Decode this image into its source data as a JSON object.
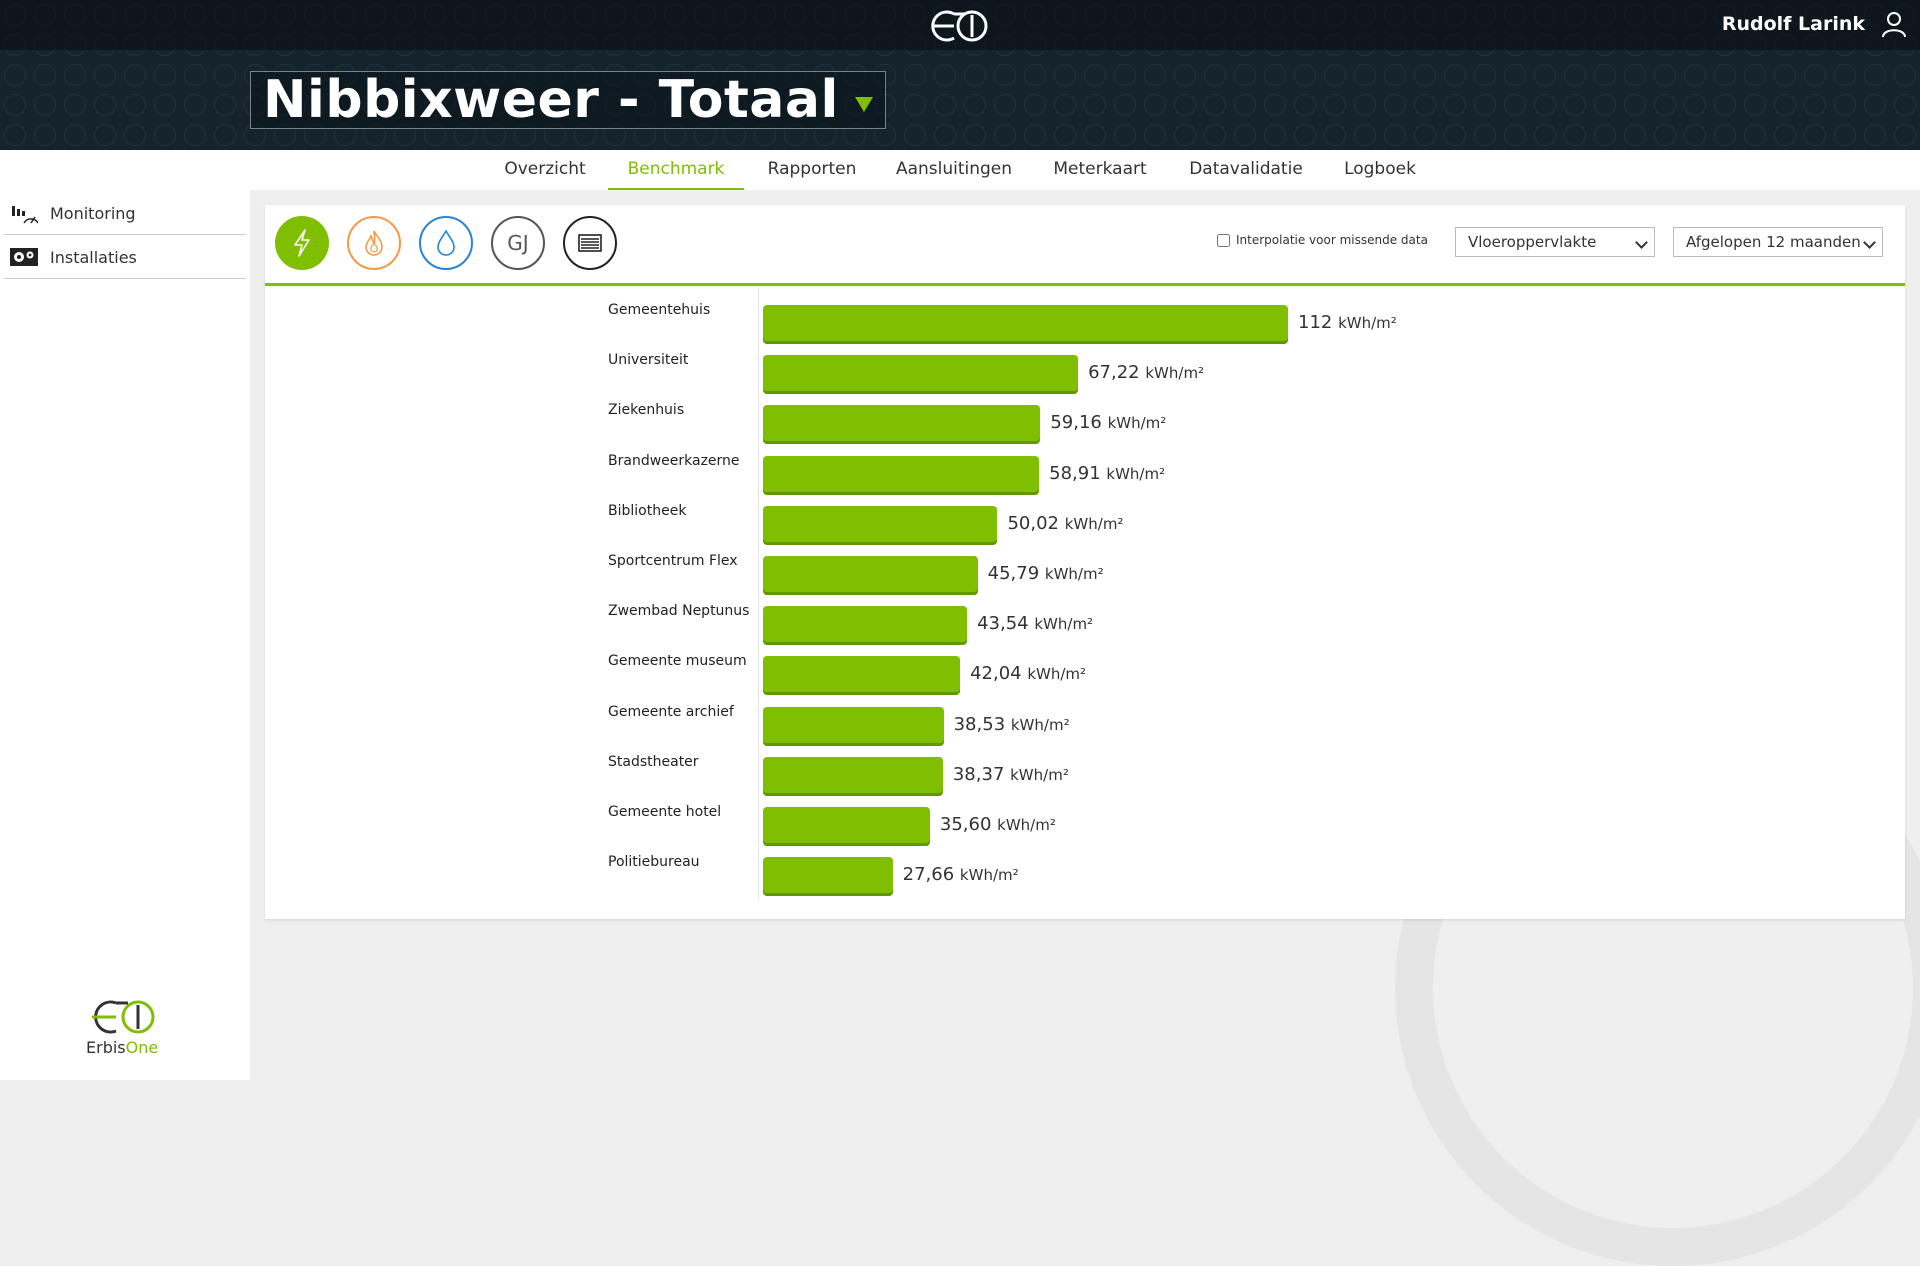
{
  "header": {
    "user_name": "Rudolf Larink",
    "title": "Nibbixweer - Totaal"
  },
  "tabs": [
    {
      "label": "Overzicht",
      "active": false
    },
    {
      "label": "Benchmark",
      "active": true
    },
    {
      "label": "Rapporten",
      "active": false
    },
    {
      "label": "Aansluitingen",
      "active": false
    },
    {
      "label": "Meterkaart",
      "active": false
    },
    {
      "label": "Datavalidatie",
      "active": false
    },
    {
      "label": "Logboek",
      "active": false
    }
  ],
  "sidebar": {
    "items": [
      {
        "label": "Monitoring",
        "icon": "bar-chart-icon"
      },
      {
        "label": "Installaties",
        "icon": "gears-icon"
      }
    ],
    "logo_text_a": "Erbis",
    "logo_text_b": "One"
  },
  "toolbar": {
    "categories": [
      {
        "name": "electricity",
        "icon": "lightning-icon",
        "color": "#7fbe00",
        "selected": true
      },
      {
        "name": "gas",
        "icon": "flame-icon",
        "color": "#f39a4a",
        "selected": false
      },
      {
        "name": "water",
        "icon": "water-drop-icon",
        "color": "#2a84d2",
        "selected": false
      },
      {
        "name": "heat",
        "label": "GJ",
        "color": "#555555",
        "selected": false
      },
      {
        "name": "total",
        "icon": "list-icon",
        "color": "#222222",
        "selected": false
      }
    ],
    "interpolation_label": "Interpolatie voor missende data",
    "interpolation_checked": false,
    "basis_select": "Vloeroppervlakte",
    "period_select": "Afgelopen 12 maanden"
  },
  "colors": {
    "accent": "#7fbe00",
    "header_bg": "#15232c"
  },
  "chart_data": {
    "type": "bar",
    "orientation": "horizontal",
    "unit": "kWh/m²",
    "categories": [
      "Gemeentehuis",
      "Universiteit",
      "Ziekenhuis",
      "Brandweerkazerne",
      "Bibliotheek",
      "Sportcentrum Flex",
      "Zwembad Neptunus",
      "Gemeente museum",
      "Gemeente archief",
      "Stadstheater",
      "Gemeente hotel",
      "Politiebureau"
    ],
    "values": [
      112,
      67.22,
      59.16,
      58.91,
      50.02,
      45.79,
      43.54,
      42.04,
      38.53,
      38.37,
      35.6,
      27.66
    ],
    "value_labels": [
      "112",
      "67,22",
      "59,16",
      "58,91",
      "50,02",
      "45,79",
      "43,54",
      "42,04",
      "38,53",
      "38,37",
      "35,60",
      "27,66"
    ],
    "xlim": [
      0,
      112
    ],
    "grid": false,
    "legend": "none"
  }
}
